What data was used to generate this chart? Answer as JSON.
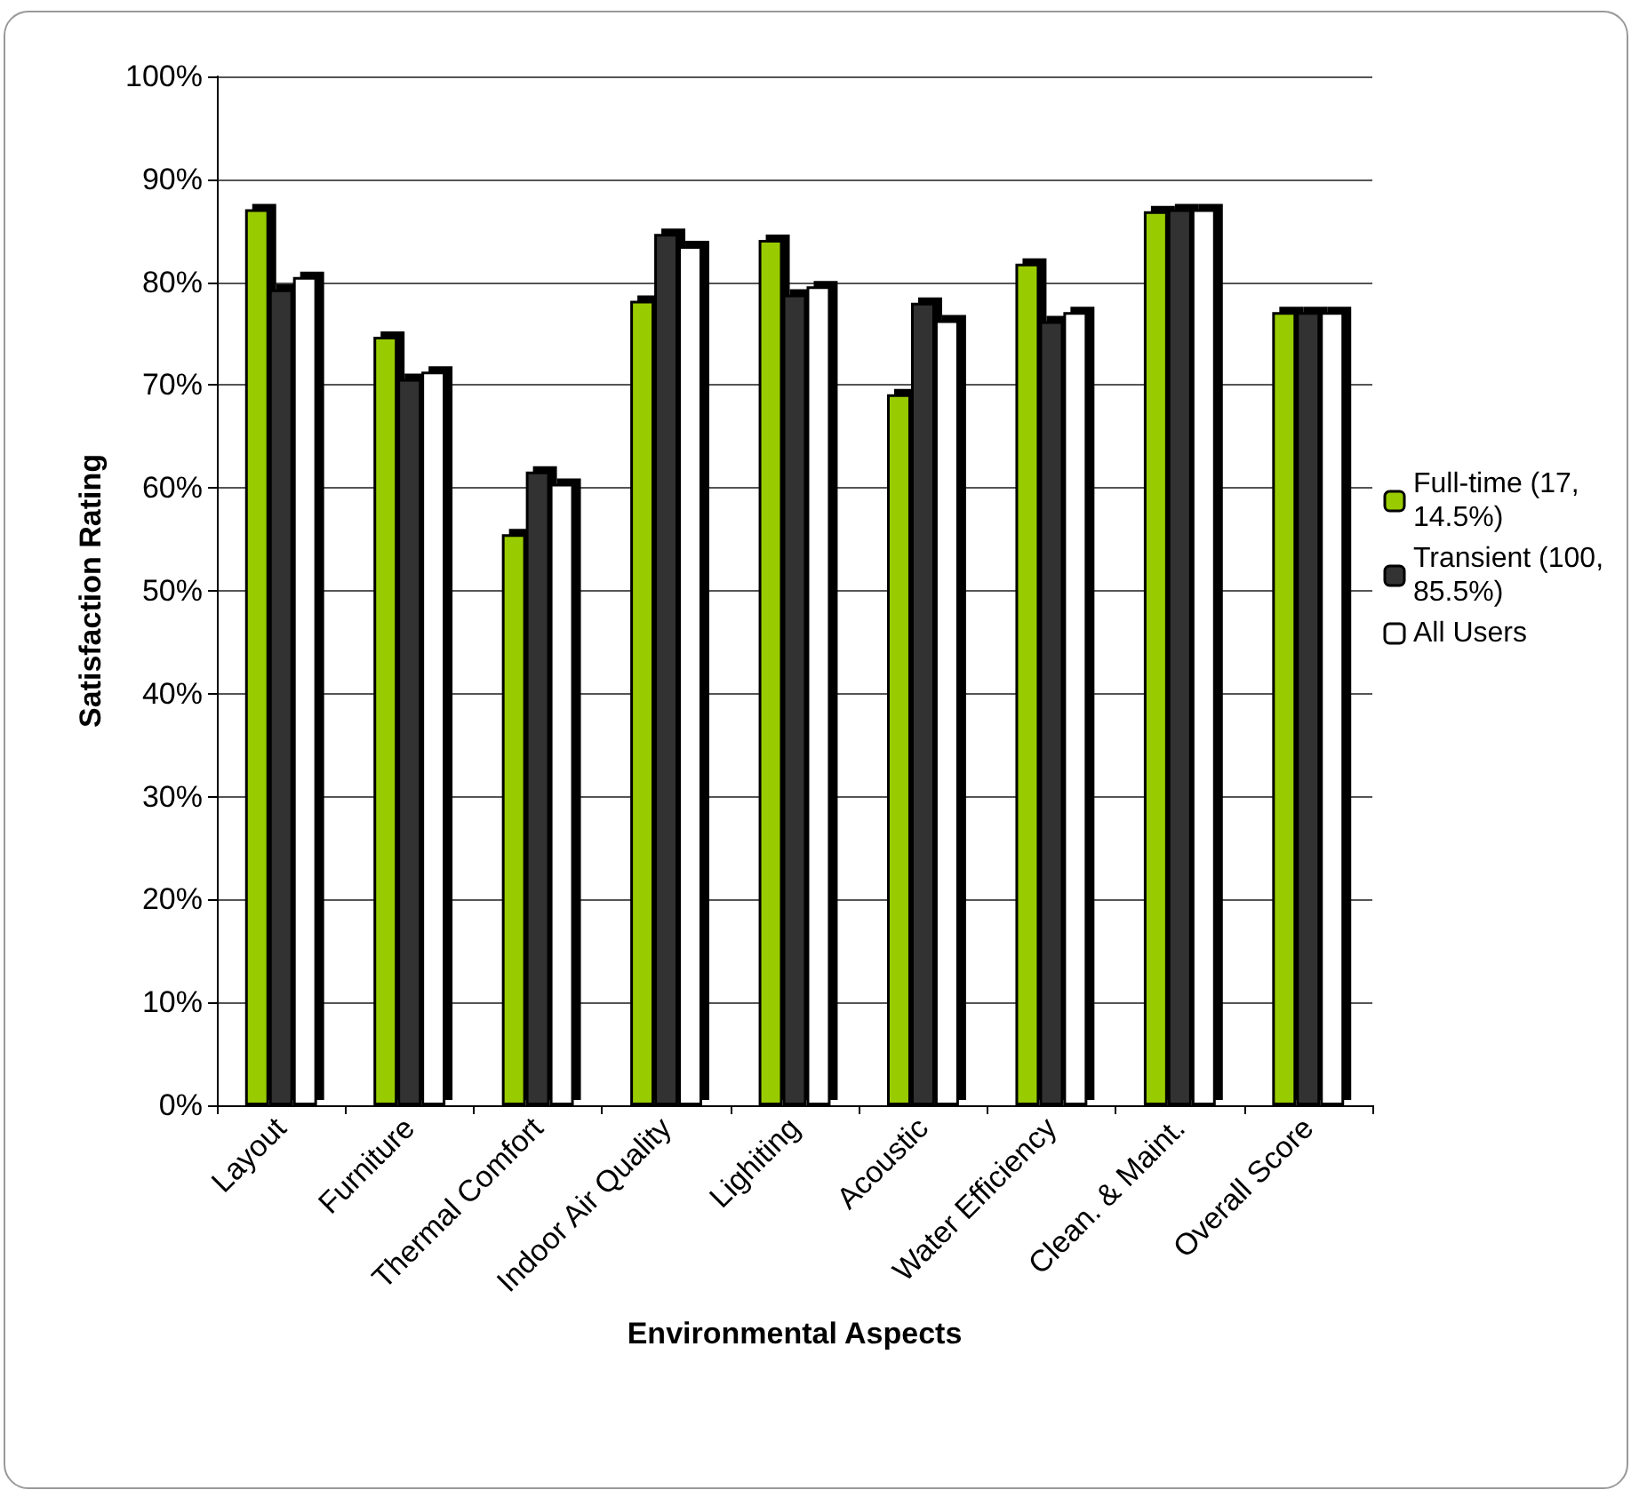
{
  "chart_data": {
    "type": "bar",
    "categories": [
      "Layout",
      "Furniture",
      "Thermal Comfort",
      "Indoor Air Quality",
      "Lighiting",
      "Acoustic",
      "Water Efficiency",
      "Clean. & Maint.",
      "Overall Score"
    ],
    "series": [
      {
        "name": "Full-time (17, 14.5%)",
        "color": "#99cc00",
        "values": [
          87.1,
          74.7,
          55.5,
          78.2,
          84.1,
          69.1,
          81.8,
          86.9,
          77.1
        ]
      },
      {
        "name": "Transient (100, 85.5%)",
        "color": "#333333",
        "values": [
          79.3,
          70.6,
          61.6,
          84.7,
          78.8,
          78.0,
          76.2,
          87.1,
          77.1
        ]
      },
      {
        "name": "All Users",
        "color": "#ffffff",
        "values": [
          80.5,
          71.3,
          60.4,
          83.5,
          79.6,
          76.3,
          77.1,
          87.1,
          77.1
        ]
      }
    ],
    "xlabel": "Environmental Aspects",
    "ylabel": "Satisfaction Rating",
    "ylim": [
      0,
      100
    ],
    "yticks": [
      {
        "value": 0,
        "label": "0%"
      },
      {
        "value": 10,
        "label": "10%"
      },
      {
        "value": 20,
        "label": "20%"
      },
      {
        "value": 30,
        "label": "30%"
      },
      {
        "value": 40,
        "label": "40%"
      },
      {
        "value": 50,
        "label": "50%"
      },
      {
        "value": 60,
        "label": "60%"
      },
      {
        "value": 70,
        "label": "70%"
      },
      {
        "value": 80,
        "label": "80%"
      },
      {
        "value": 90,
        "label": "90%"
      },
      {
        "value": 100,
        "label": "100%"
      }
    ],
    "grid": "y",
    "legend": "right"
  }
}
